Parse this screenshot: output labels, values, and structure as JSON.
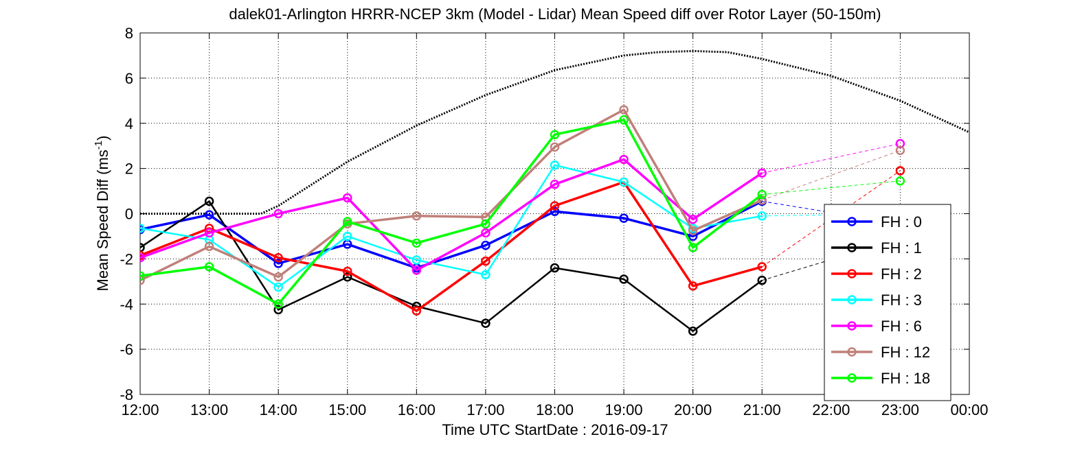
{
  "chart_data": {
    "type": "line",
    "title": "dalek01-Arlington HRRR-NCEP 3km (Model - Lidar) Mean Speed diff over Rotor Layer (50-150m)",
    "xlabel": "Time UTC    StartDate : 2016-09-17",
    "ylabel": {
      "text": "Mean Speed Diff (ms",
      "superscript": "-1",
      "suffix": ")"
    },
    "x_ticks": [
      "12:00",
      "13:00",
      "14:00",
      "15:00",
      "16:00",
      "17:00",
      "18:00",
      "19:00",
      "20:00",
      "21:00",
      "22:00",
      "23:00",
      "00:00"
    ],
    "xlim": [
      0,
      12
    ],
    "y_ticks": [
      "-8",
      "-6",
      "-4",
      "-2",
      "0",
      "2",
      "4",
      "6",
      "8"
    ],
    "ylim": [
      -8,
      8
    ],
    "grid": true,
    "legend_position": "lower-right",
    "series": [
      {
        "name": "FH : 0",
        "color": "#0000ff",
        "solid": [
          [
            0,
            -0.7
          ],
          [
            1,
            -0.05
          ],
          [
            2,
            -2.2
          ],
          [
            3,
            -1.35
          ],
          [
            4,
            -2.4
          ],
          [
            5,
            -1.4
          ],
          [
            6,
            0.1
          ],
          [
            7,
            -0.2
          ],
          [
            8,
            -1.0
          ],
          [
            9,
            0.55
          ]
        ],
        "dashed": [
          [
            9,
            0.55
          ],
          [
            10.2,
            -0.05
          ]
        ]
      },
      {
        "name": "FH : 1",
        "color": "#000000",
        "solid": [
          [
            0,
            -1.5
          ],
          [
            1,
            0.55
          ],
          [
            2,
            -4.25
          ],
          [
            3,
            -2.8
          ],
          [
            4,
            -4.1
          ],
          [
            5,
            -4.85
          ],
          [
            6,
            -2.4
          ],
          [
            7,
            -2.9
          ],
          [
            8,
            -5.2
          ],
          [
            9,
            -2.95
          ]
        ],
        "dashed": [
          [
            9,
            -2.95
          ],
          [
            10.2,
            -1.85
          ]
        ]
      },
      {
        "name": "FH : 2",
        "color": "#ff0000",
        "solid": [
          [
            0,
            -1.85
          ],
          [
            1,
            -0.65
          ],
          [
            2,
            -1.95
          ],
          [
            3,
            -2.55
          ],
          [
            4,
            -4.3
          ],
          [
            5,
            -2.1
          ],
          [
            6,
            0.35
          ],
          [
            7,
            1.4
          ],
          [
            8,
            -3.2
          ],
          [
            9,
            -2.35
          ]
        ],
        "dashed": [
          [
            9,
            -2.35
          ],
          [
            11,
            1.9
          ]
        ],
        "extra_points": [
          [
            11,
            1.9
          ]
        ]
      },
      {
        "name": "FH : 3",
        "color": "#00ffff",
        "solid": [
          [
            0,
            -0.65
          ],
          [
            1,
            -1.15
          ],
          [
            2,
            -3.25
          ],
          [
            3,
            -1.0
          ],
          [
            4,
            -2.05
          ],
          [
            5,
            -2.7
          ],
          [
            6,
            2.15
          ],
          [
            7,
            1.4
          ],
          [
            8,
            -0.65
          ],
          [
            9,
            -0.1
          ]
        ],
        "dashed": [
          [
            9,
            -0.1
          ],
          [
            10.2,
            -0.05
          ]
        ]
      },
      {
        "name": "FH : 6",
        "color": "#ff00ff",
        "solid": [
          [
            0,
            -1.95
          ],
          [
            1,
            -0.85
          ],
          [
            2,
            0.0
          ],
          [
            3,
            0.7
          ],
          [
            4,
            -2.5
          ],
          [
            5,
            -0.85
          ],
          [
            6,
            1.3
          ],
          [
            7,
            2.4
          ],
          [
            8,
            -0.25
          ],
          [
            9,
            1.8
          ]
        ],
        "dashed": [
          [
            9,
            1.8
          ],
          [
            11,
            3.1
          ]
        ],
        "extra_points": [
          [
            11,
            3.1
          ]
        ]
      },
      {
        "name": "FH : 12",
        "color": "#c0807a",
        "solid": [
          [
            0,
            -2.95
          ],
          [
            1,
            -1.45
          ],
          [
            2,
            -2.8
          ],
          [
            3,
            -0.45
          ],
          [
            4,
            -0.1
          ],
          [
            5,
            -0.15
          ],
          [
            6,
            2.95
          ],
          [
            7,
            4.6
          ],
          [
            8,
            -0.75
          ],
          [
            9,
            0.6
          ]
        ],
        "dashed": [
          [
            9,
            0.6
          ],
          [
            11,
            2.8
          ]
        ],
        "extra_points": [
          [
            11,
            2.8
          ]
        ]
      },
      {
        "name": "FH : 18",
        "color": "#00ff00",
        "solid": [
          [
            0,
            -2.75
          ],
          [
            1,
            -2.35
          ],
          [
            2,
            -4.0
          ],
          [
            3,
            -0.35
          ],
          [
            4,
            -1.3
          ],
          [
            5,
            -0.45
          ],
          [
            6,
            3.5
          ],
          [
            7,
            4.15
          ],
          [
            8,
            -1.5
          ],
          [
            9,
            0.85
          ]
        ],
        "dashed": [
          [
            9,
            0.85
          ],
          [
            11,
            1.45
          ]
        ],
        "extra_points": [
          [
            11,
            1.45
          ]
        ]
      }
    ],
    "reference_curve": {
      "color": "#000000",
      "points": [
        [
          0,
          0
        ],
        [
          1,
          0
        ],
        [
          1.75,
          0
        ],
        [
          2,
          0.35
        ],
        [
          3,
          2.3
        ],
        [
          4,
          3.9
        ],
        [
          5,
          5.25
        ],
        [
          6,
          6.35
        ],
        [
          7,
          7.0
        ],
        [
          7.5,
          7.15
        ],
        [
          8,
          7.2
        ],
        [
          8.5,
          7.15
        ],
        [
          9,
          6.85
        ],
        [
          10,
          6.1
        ],
        [
          11,
          5.0
        ],
        [
          12,
          3.6
        ]
      ]
    }
  }
}
